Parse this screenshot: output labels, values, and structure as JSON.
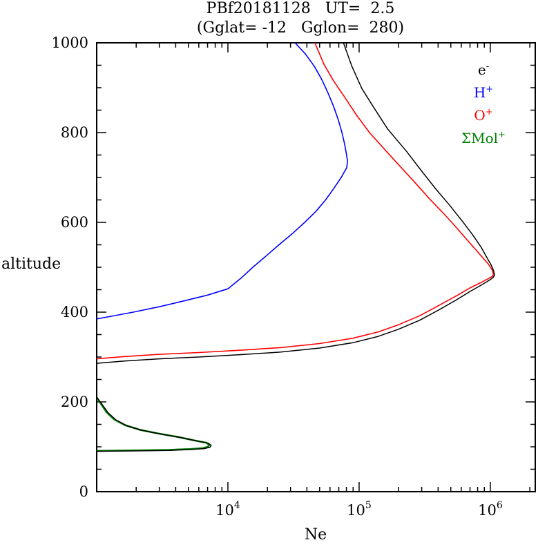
{
  "figure": {
    "background": "#ffffff"
  },
  "chart_data": {
    "type": "line",
    "title": "PBf20181128   UT=  2.5",
    "subtitle": "(Gglat= -12   Gglon=  280)",
    "xlabel": "Ne",
    "ylabel": "altitude",
    "x_scale": "log",
    "y_scale": "linear",
    "xlim": [
      1000,
      2200000
    ],
    "ylim": [
      0,
      1000
    ],
    "x_major_ticks": [
      10000,
      100000,
      1000000
    ],
    "x_tick_labels": [
      {
        "base": "10",
        "sup": "4"
      },
      {
        "base": "10",
        "sup": "5"
      },
      {
        "base": "10",
        "sup": "6"
      }
    ],
    "y_major_ticks": [
      0,
      200,
      400,
      600,
      800,
      1000
    ],
    "y_minor_step": 50,
    "grid": false,
    "legend_position": "upper-right-inside",
    "legend": [
      {
        "id": "electron",
        "base": "e",
        "sup": "-",
        "color": "#000000"
      },
      {
        "id": "h-plus",
        "base": "H",
        "sup": "+",
        "color": "#0000ff"
      },
      {
        "id": "o-plus",
        "base": "O",
        "sup": "+",
        "color": "#ff0000"
      },
      {
        "id": "mol-plus",
        "base": "ΣMol",
        "sup": "+",
        "color": "#008000"
      }
    ],
    "series": [
      {
        "id": "h-plus",
        "name": "H+",
        "color": "#0000ff",
        "width": 1.6,
        "points": [
          [
            1000,
            385
          ],
          [
            1300,
            391
          ],
          [
            1900,
            400
          ],
          [
            3000,
            412
          ],
          [
            4600,
            425
          ],
          [
            7000,
            438
          ],
          [
            10000,
            452
          ],
          [
            12500,
            475
          ],
          [
            15500,
            500
          ],
          [
            19500,
            525
          ],
          [
            24500,
            550
          ],
          [
            31000,
            575
          ],
          [
            38500,
            600
          ],
          [
            47000,
            625
          ],
          [
            55500,
            650
          ],
          [
            64000,
            675
          ],
          [
            73000,
            700
          ],
          [
            80500,
            722
          ],
          [
            81500,
            737
          ],
          [
            80000,
            752
          ],
          [
            77500,
            775
          ],
          [
            74000,
            800
          ],
          [
            69500,
            828
          ],
          [
            64000,
            858
          ],
          [
            58000,
            888
          ],
          [
            52000,
            918
          ],
          [
            45500,
            948
          ],
          [
            39000,
            975
          ],
          [
            32500,
            1000
          ]
        ]
      },
      {
        "id": "o-plus",
        "name": "O+",
        "color": "#ff0000",
        "width": 1.6,
        "points": [
          [
            1000,
            296
          ],
          [
            1600,
            301
          ],
          [
            3000,
            306
          ],
          [
            6000,
            310
          ],
          [
            12000,
            315
          ],
          [
            25000,
            321
          ],
          [
            50000,
            330
          ],
          [
            90000,
            342
          ],
          [
            140000,
            356
          ],
          [
            200000,
            372
          ],
          [
            290000,
            392
          ],
          [
            400000,
            414
          ],
          [
            550000,
            436
          ],
          [
            700000,
            454
          ],
          [
            850000,
            466
          ],
          [
            970000,
            475
          ],
          [
            1040000,
            480
          ],
          [
            1055000,
            484
          ],
          [
            1030000,
            495
          ],
          [
            960000,
            508
          ],
          [
            870000,
            522
          ],
          [
            770000,
            540
          ],
          [
            660000,
            562
          ],
          [
            545000,
            590
          ],
          [
            440000,
            620
          ],
          [
            345000,
            652
          ],
          [
            268000,
            688
          ],
          [
            205000,
            725
          ],
          [
            157000,
            762
          ],
          [
            120000,
            800
          ],
          [
            95000,
            840
          ],
          [
            78000,
            878
          ],
          [
            64000,
            915
          ],
          [
            54000,
            952
          ],
          [
            46000,
            1000
          ]
        ]
      },
      {
        "id": "mol-plus",
        "name": "Mol+",
        "color": "#008000",
        "width": 2.6,
        "points": [
          [
            1000,
            91
          ],
          [
            2100,
            92
          ],
          [
            3500,
            93
          ],
          [
            5100,
            95
          ],
          [
            6400,
            97
          ],
          [
            7050,
            100
          ],
          [
            7200,
            104
          ],
          [
            6850,
            109
          ],
          [
            5800,
            113
          ],
          [
            4150,
            122
          ],
          [
            2900,
            130
          ],
          [
            2120,
            138
          ],
          [
            1650,
            148
          ],
          [
            1360,
            161
          ],
          [
            1190,
            177
          ],
          [
            1070,
            197
          ],
          [
            1000,
            210
          ]
        ]
      },
      {
        "id": "electron",
        "name": "e-",
        "color": "#000000",
        "width": 1.5,
        "points": [
          [
            1000,
            90
          ],
          [
            2100,
            91
          ],
          [
            3600,
            92
          ],
          [
            5300,
            94
          ],
          [
            6600,
            96
          ],
          [
            7300,
            99
          ],
          [
            7450,
            103
          ],
          [
            7100,
            108
          ],
          [
            6000,
            112
          ],
          [
            4300,
            121
          ],
          [
            3000,
            129
          ],
          [
            2200,
            137
          ],
          [
            1700,
            147
          ],
          [
            1400,
            160
          ],
          [
            1220,
            176
          ],
          [
            1090,
            196
          ],
          [
            1000,
            211
          ],
          [
            900,
            226
          ],
          [
            840,
            244
          ],
          [
            820,
            260
          ],
          [
            870,
            274
          ],
          [
            950,
            281
          ],
          [
            1000,
            286
          ],
          [
            1600,
            291
          ],
          [
            3000,
            296
          ],
          [
            6000,
            300
          ],
          [
            12000,
            305
          ],
          [
            25000,
            311
          ],
          [
            50000,
            320
          ],
          [
            90000,
            332
          ],
          [
            140000,
            346
          ],
          [
            200000,
            362
          ],
          [
            290000,
            382
          ],
          [
            400000,
            404
          ],
          [
            550000,
            427
          ],
          [
            700000,
            446
          ],
          [
            850000,
            460
          ],
          [
            970000,
            470
          ],
          [
            1050000,
            477
          ],
          [
            1075000,
            482
          ],
          [
            1060000,
            492
          ],
          [
            1010000,
            506
          ],
          [
            940000,
            522
          ],
          [
            850000,
            545
          ],
          [
            730000,
            573
          ],
          [
            610000,
            603
          ],
          [
            490000,
            638
          ],
          [
            385000,
            674
          ],
          [
            300000,
            714
          ],
          [
            230000,
            758
          ],
          [
            165000,
            808
          ],
          [
            128000,
            858
          ],
          [
            105000,
            898
          ],
          [
            88000,
            948
          ],
          [
            76000,
            1000
          ]
        ]
      }
    ]
  }
}
